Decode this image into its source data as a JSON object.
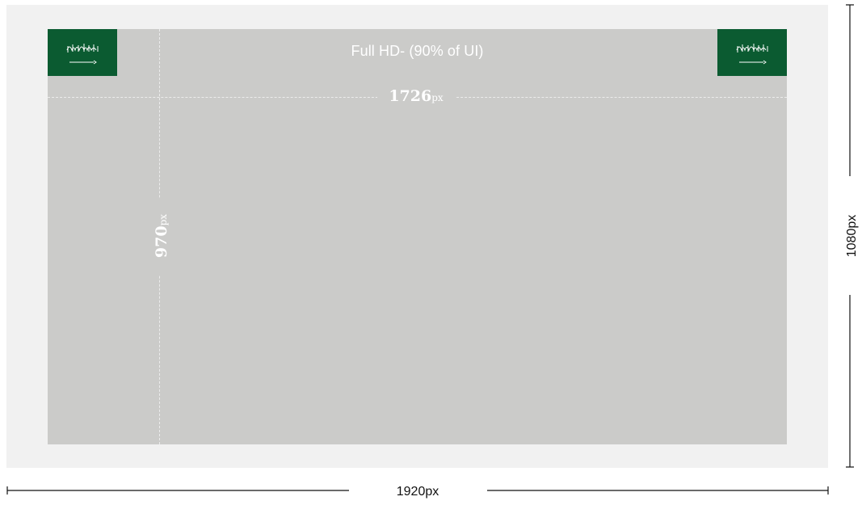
{
  "screen_label": "1920px",
  "height_label": "1080px",
  "ui_area": {
    "title": "Full HD- (90% of UI)",
    "width_value": "1726",
    "height_value": "970",
    "unit": "px"
  },
  "colors": {
    "outer_screen": "#f1f1f1",
    "ui_area": "#cbcbc9",
    "flag_green": "#0b5b31",
    "measure_text": "#ffffff"
  },
  "icons": [
    "saudi-flag-icon",
    "saudi-flag-icon"
  ]
}
